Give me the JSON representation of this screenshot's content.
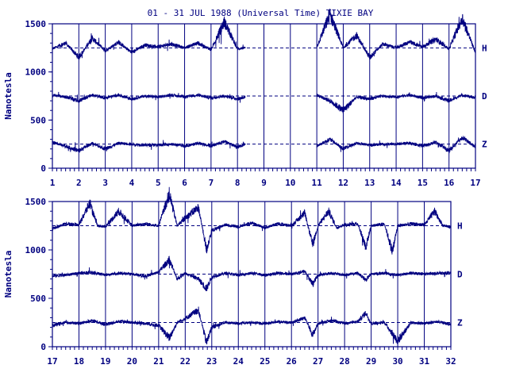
{
  "chart_data": {
    "type": "line",
    "title": "01 - 31 JUL 1988 (Universal Time) TIXIE BAY",
    "ylabel": "Nanotesla",
    "color": "#000080",
    "panels": [
      {
        "x_range": [
          1,
          17
        ],
        "x_ticks": [
          "1",
          "2",
          "3",
          "4",
          "5",
          "6",
          "7",
          "8",
          "9",
          "10",
          "11",
          "12",
          "13",
          "14",
          "15",
          "16",
          "17"
        ],
        "ylim": [
          0,
          1500
        ],
        "y_ticks": [
          "0",
          "500",
          "1000",
          "1500"
        ],
        "data_gaps": [
          [
            8.3,
            11.0
          ]
        ],
        "series": [
          {
            "name": "H",
            "baseline": 1250,
            "values": [
              [
                1,
                1240
              ],
              [
                1.5,
                1300
              ],
              [
                2,
                1150
              ],
              [
                2.5,
                1350
              ],
              [
                3,
                1220
              ],
              [
                3.5,
                1310
              ],
              [
                4,
                1200
              ],
              [
                4.5,
                1280
              ],
              [
                5,
                1260
              ],
              [
                5.5,
                1290
              ],
              [
                6,
                1250
              ],
              [
                6.5,
                1300
              ],
              [
                7,
                1230
              ],
              [
                7.5,
                1520
              ],
              [
                8,
                1240
              ],
              [
                8.3,
                1250
              ],
              [
                11,
                1260
              ],
              [
                11.5,
                1600
              ],
              [
                12,
                1250
              ],
              [
                12.5,
                1380
              ],
              [
                13,
                1150
              ],
              [
                13.5,
                1290
              ],
              [
                14,
                1250
              ],
              [
                14.5,
                1310
              ],
              [
                15,
                1260
              ],
              [
                15.5,
                1340
              ],
              [
                16,
                1240
              ],
              [
                16.5,
                1560
              ],
              [
                17,
                1200
              ]
            ]
          },
          {
            "name": "D",
            "baseline": 750,
            "values": [
              [
                1,
                760
              ],
              [
                1.5,
                740
              ],
              [
                2,
                700
              ],
              [
                2.5,
                760
              ],
              [
                3,
                730
              ],
              [
                3.5,
                760
              ],
              [
                4,
                720
              ],
              [
                4.5,
                750
              ],
              [
                5,
                740
              ],
              [
                5.5,
                760
              ],
              [
                6,
                740
              ],
              [
                6.5,
                760
              ],
              [
                7,
                730
              ],
              [
                7.5,
                750
              ],
              [
                8,
                720
              ],
              [
                8.3,
                740
              ],
              [
                11,
                760
              ],
              [
                11.5,
                700
              ],
              [
                12,
                600
              ],
              [
                12.5,
                740
              ],
              [
                13,
                720
              ],
              [
                13.5,
                750
              ],
              [
                14,
                740
              ],
              [
                14.5,
                760
              ],
              [
                15,
                730
              ],
              [
                15.5,
                750
              ],
              [
                16,
                700
              ],
              [
                16.5,
                760
              ],
              [
                17,
                730
              ]
            ]
          },
          {
            "name": "Z",
            "baseline": 250,
            "values": [
              [
                1,
                270
              ],
              [
                1.5,
                230
              ],
              [
                2,
                180
              ],
              [
                2.5,
                260
              ],
              [
                3,
                200
              ],
              [
                3.5,
                260
              ],
              [
                4,
                250
              ],
              [
                4.5,
                240
              ],
              [
                5,
                240
              ],
              [
                5.5,
                250
              ],
              [
                6,
                230
              ],
              [
                6.5,
                260
              ],
              [
                7,
                230
              ],
              [
                7.5,
                280
              ],
              [
                8,
                220
              ],
              [
                8.3,
                250
              ],
              [
                11,
                230
              ],
              [
                11.5,
                300
              ],
              [
                12,
                200
              ],
              [
                12.5,
                260
              ],
              [
                13,
                240
              ],
              [
                13.5,
                250
              ],
              [
                14,
                250
              ],
              [
                14.5,
                260
              ],
              [
                15,
                230
              ],
              [
                15.5,
                270
              ],
              [
                16,
                180
              ],
              [
                16.5,
                320
              ],
              [
                17,
                220
              ]
            ]
          }
        ]
      },
      {
        "x_range": [
          17,
          32
        ],
        "x_ticks": [
          "17",
          "18",
          "19",
          "20",
          "21",
          "22",
          "23",
          "24",
          "25",
          "26",
          "27",
          "28",
          "29",
          "30",
          "31",
          "32"
        ],
        "ylim": [
          0,
          1500
        ],
        "y_ticks": [
          "0",
          "500",
          "1000",
          "1500"
        ],
        "data_gaps": [],
        "series": [
          {
            "name": "H",
            "baseline": 1250,
            "values": [
              [
                17,
                1220
              ],
              [
                17.5,
                1270
              ],
              [
                18,
                1260
              ],
              [
                18.4,
                1480
              ],
              [
                18.7,
                1250
              ],
              [
                19,
                1240
              ],
              [
                19.5,
                1400
              ],
              [
                20,
                1250
              ],
              [
                20.5,
                1270
              ],
              [
                21,
                1250
              ],
              [
                21.4,
                1580
              ],
              [
                21.7,
                1250
              ],
              [
                22,
                1330
              ],
              [
                22.5,
                1440
              ],
              [
                22.8,
                1000
              ],
              [
                23,
                1200
              ],
              [
                23.5,
                1260
              ],
              [
                24,
                1240
              ],
              [
                24.5,
                1280
              ],
              [
                25,
                1230
              ],
              [
                25.5,
                1270
              ],
              [
                26,
                1250
              ],
              [
                26.5,
                1380
              ],
              [
                26.8,
                1050
              ],
              [
                27,
                1250
              ],
              [
                27.4,
                1400
              ],
              [
                27.7,
                1230
              ],
              [
                28,
                1260
              ],
              [
                28.5,
                1270
              ],
              [
                28.8,
                1030
              ],
              [
                29,
                1250
              ],
              [
                29.5,
                1270
              ],
              [
                29.8,
                980
              ],
              [
                30,
                1250
              ],
              [
                30.5,
                1270
              ],
              [
                31,
                1260
              ],
              [
                31.4,
                1400
              ],
              [
                31.7,
                1250
              ],
              [
                32,
                1240
              ]
            ]
          },
          {
            "name": "D",
            "baseline": 750,
            "values": [
              [
                17,
                730
              ],
              [
                17.5,
                740
              ],
              [
                18,
                760
              ],
              [
                18.5,
                770
              ],
              [
                19,
                740
              ],
              [
                19.5,
                760
              ],
              [
                20,
                750
              ],
              [
                20.5,
                730
              ],
              [
                21,
                770
              ],
              [
                21.4,
                900
              ],
              [
                21.7,
                700
              ],
              [
                22,
                760
              ],
              [
                22.5,
                700
              ],
              [
                22.8,
                600
              ],
              [
                23,
                720
              ],
              [
                23.5,
                760
              ],
              [
                24,
                740
              ],
              [
                24.5,
                760
              ],
              [
                25,
                740
              ],
              [
                25.5,
                760
              ],
              [
                26,
                750
              ],
              [
                26.5,
                780
              ],
              [
                26.8,
                650
              ],
              [
                27,
                740
              ],
              [
                27.5,
                760
              ],
              [
                28,
                740
              ],
              [
                28.5,
                760
              ],
              [
                28.8,
                690
              ],
              [
                29,
                750
              ],
              [
                29.5,
                760
              ],
              [
                30,
                740
              ],
              [
                30.5,
                760
              ],
              [
                31,
                750
              ],
              [
                31.5,
                760
              ],
              [
                32,
                760
              ]
            ]
          },
          {
            "name": "Z",
            "baseline": 250,
            "values": [
              [
                17,
                220
              ],
              [
                17.5,
                250
              ],
              [
                18,
                240
              ],
              [
                18.5,
                270
              ],
              [
                19,
                230
              ],
              [
                19.5,
                260
              ],
              [
                20,
                250
              ],
              [
                20.5,
                240
              ],
              [
                21,
                220
              ],
              [
                21.4,
                90
              ],
              [
                21.7,
                250
              ],
              [
                22,
                290
              ],
              [
                22.5,
                380
              ],
              [
                22.8,
                40
              ],
              [
                23,
                200
              ],
              [
                23.5,
                250
              ],
              [
                24,
                240
              ],
              [
                24.5,
                250
              ],
              [
                25,
                240
              ],
              [
                25.5,
                260
              ],
              [
                26,
                250
              ],
              [
                26.5,
                300
              ],
              [
                26.8,
                120
              ],
              [
                27,
                240
              ],
              [
                27.5,
                270
              ],
              [
                28,
                240
              ],
              [
                28.5,
                260
              ],
              [
                28.8,
                350
              ],
              [
                29,
                240
              ],
              [
                29.5,
                250
              ],
              [
                30,
                60
              ],
              [
                30.5,
                250
              ],
              [
                31,
                240
              ],
              [
                31.5,
                260
              ],
              [
                32,
                230
              ]
            ]
          }
        ]
      }
    ]
  }
}
